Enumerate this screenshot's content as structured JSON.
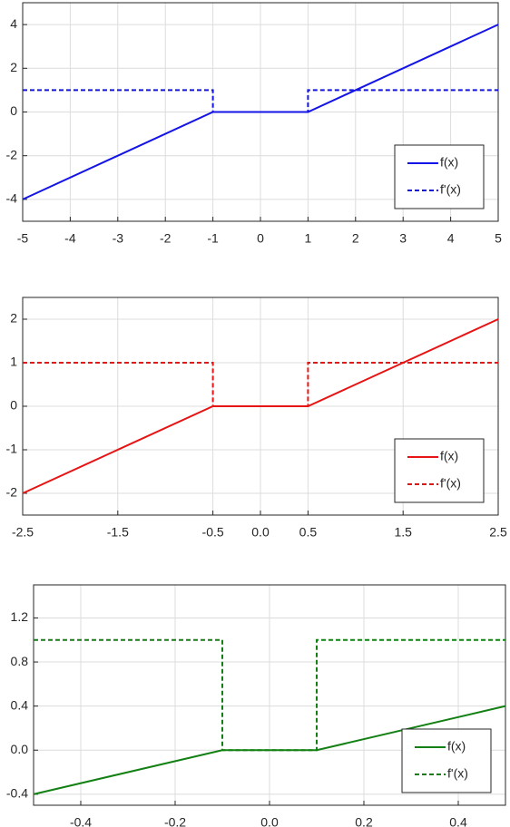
{
  "chart_data": [
    {
      "type": "line",
      "xlim": [
        -5,
        5
      ],
      "ylim": [
        -5,
        5
      ],
      "xticks": [
        -5,
        -4,
        -3,
        -2,
        -1,
        0,
        1,
        2,
        3,
        4,
        5
      ],
      "yticks": [
        -4,
        -2,
        0,
        2,
        4
      ],
      "grid": true,
      "legend": "lower right",
      "series": [
        {
          "name": "f(x)",
          "color": "#1414e6",
          "linestyle": "solid",
          "x": [
            -5,
            -1,
            1,
            5
          ],
          "values": [
            -4,
            0,
            0,
            4
          ]
        },
        {
          "name": "f'(x)",
          "color": "#1414e6",
          "linestyle": "dashed",
          "x": [
            -5,
            -1,
            -1,
            1,
            1,
            5
          ],
          "values": [
            1,
            1,
            0,
            0,
            1,
            1
          ]
        }
      ]
    },
    {
      "type": "line",
      "xlim": [
        -2.5,
        2.5
      ],
      "ylim": [
        -2.5,
        2.5
      ],
      "xticks": [
        -2.5,
        -1.5,
        -0.5,
        {
          "value": 0,
          "label": "0.0"
        },
        0.5,
        1.5,
        2.5
      ],
      "yticks": [
        -2,
        -1,
        0,
        1,
        2
      ],
      "grid": true,
      "legend": "lower right",
      "series": [
        {
          "name": "f(x)",
          "color": "#e61414",
          "linestyle": "solid",
          "x": [
            -2.5,
            -0.5,
            0.5,
            2.5
          ],
          "values": [
            -2,
            0,
            0,
            2
          ]
        },
        {
          "name": "f'(x)",
          "color": "#e61414",
          "linestyle": "dashed",
          "x": [
            -2.5,
            -0.5,
            -0.5,
            0.5,
            0.5,
            2.5
          ],
          "values": [
            1,
            1,
            0,
            0,
            1,
            1
          ]
        }
      ]
    },
    {
      "type": "line",
      "xlim": [
        -0.5,
        0.5
      ],
      "ylim": [
        -0.5,
        1.5
      ],
      "xticks": [
        -0.4,
        -0.2,
        {
          "value": 0,
          "label": "0.0"
        },
        0.2,
        0.4
      ],
      "yticks": [
        -0.4,
        {
          "value": 0,
          "label": "0.0"
        },
        0.4,
        0.8,
        1.2
      ],
      "grid": true,
      "legend": "lower right",
      "series": [
        {
          "name": "f(x)",
          "color": "#128012",
          "linestyle": "solid",
          "x": [
            -0.5,
            -0.1,
            0.1,
            0.5
          ],
          "values": [
            -0.4,
            0,
            0,
            0.4
          ]
        },
        {
          "name": "f'(x)",
          "color": "#128012",
          "linestyle": "dashed",
          "x": [
            -0.5,
            -0.1,
            -0.1,
            0.1,
            0.1,
            0.5
          ],
          "values": [
            1,
            1,
            0,
            0,
            1,
            1
          ]
        }
      ]
    }
  ]
}
